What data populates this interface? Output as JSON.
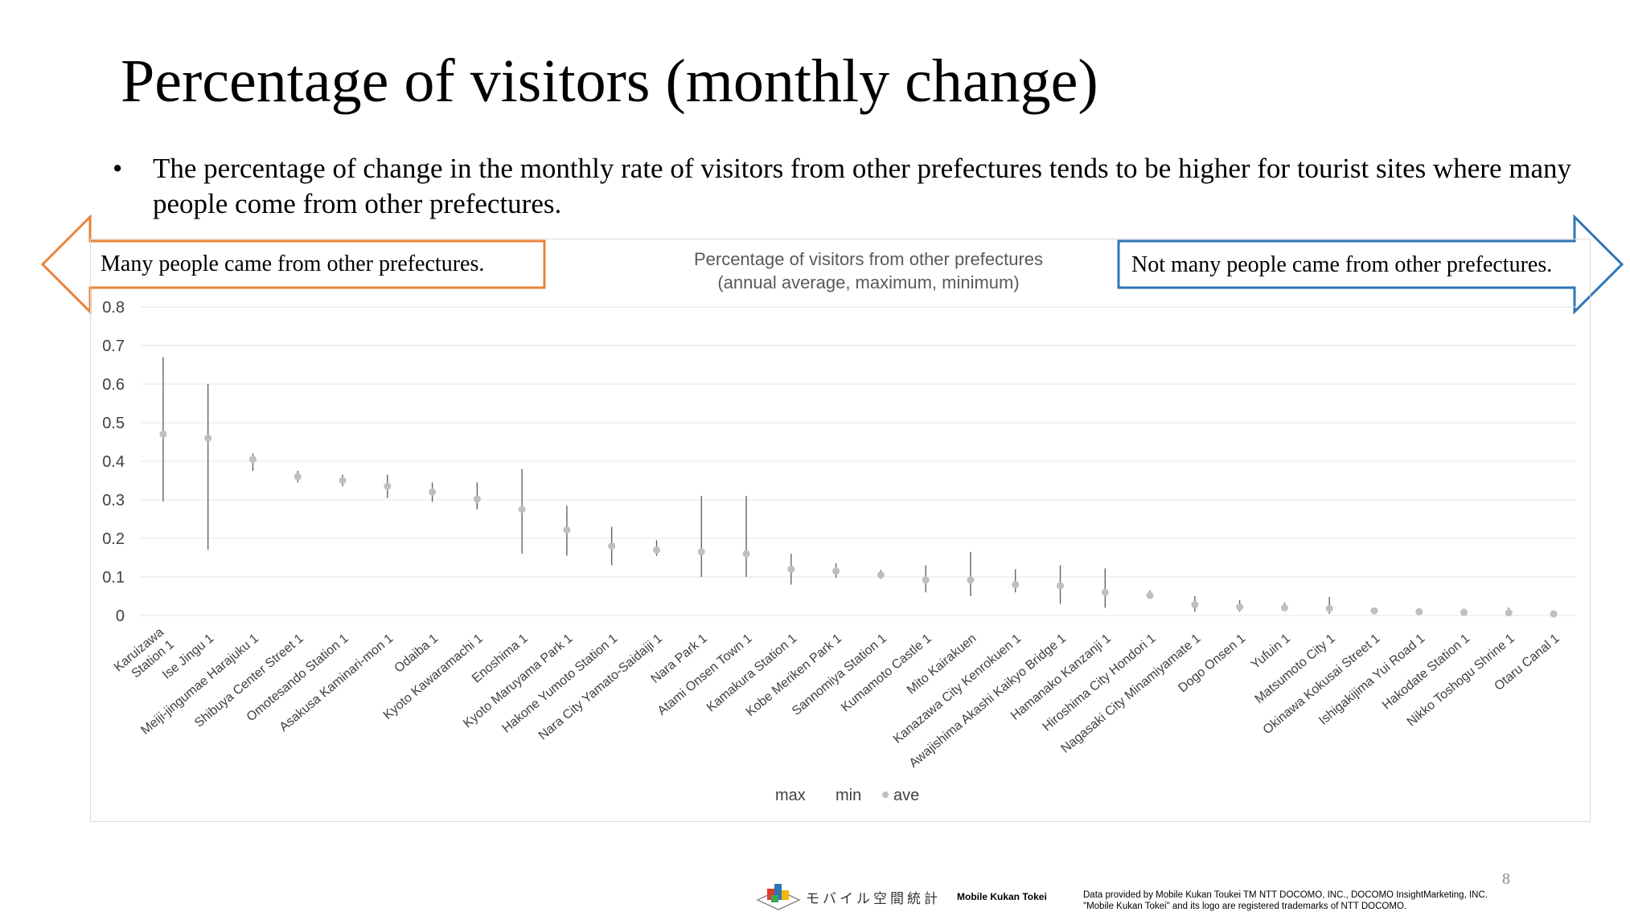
{
  "slide": {
    "title": "Percentage of visitors (monthly change)",
    "bullet_symbol": "•",
    "bullet": "The percentage of change in the monthly rate of visitors from other prefectures tends to be higher for tourist sites where many people come from other prefectures.",
    "left_arrow_label": "Many people came from other prefectures.",
    "right_arrow_label": "Not many people came from other prefectures.",
    "page_number": "8"
  },
  "footer": {
    "logo_jp": "モバイル空間統計",
    "brand": "Mobile Kukan Tokei",
    "note_line1": "Data provided by Mobile Kukan Toukei TM NTT DOCOMO, INC., DOCOMO InsightMarketing, INC.",
    "note_line2": "\"Mobile Kukan Tokei\" and its logo are registered trademarks of NTT DOCOMO."
  },
  "colors": {
    "left_arrow": "#e8833a",
    "right_arrow": "#2e75b6",
    "marker": "#bfbfbf",
    "range_line": "#595959",
    "grid": "#e6e6e6",
    "axis_text": "#404040"
  },
  "chart_data": {
    "type": "stock",
    "title": "Percentage of visitors from other prefectures",
    "subtitle": "(annual average, maximum, minimum)",
    "ylim": [
      0,
      0.8
    ],
    "yticks": [
      0,
      0.1,
      0.2,
      0.3,
      0.4,
      0.5,
      0.6,
      0.7,
      0.8
    ],
    "ytick_labels": [
      "0",
      "0.1",
      "0.2",
      "0.3",
      "0.4",
      "0.5",
      "0.6",
      "0.7",
      "0.8"
    ],
    "grid": true,
    "legend": [
      "max",
      "min",
      "ave"
    ],
    "legend_position": "bottom",
    "categories": [
      "Karuizawa Station 1",
      "Ise Jingu 1",
      "Meiji-jingumae Harajuku 1",
      "Shibuya Center Street 1",
      "Omotesando Station 1",
      "Asakusa Kaminari-mon 1",
      "Odaiba 1",
      "Kyoto Kawaramachi 1",
      "Enoshima 1",
      "Kyoto Maruyama Park 1",
      "Hakone Yumoto Station 1",
      "Nara City Yamato-Saidaiji 1",
      "Nara Park 1",
      "Atami Onsen Town 1",
      "Kamakura Station 1",
      "Kobe Meriken Park 1",
      "Sannomiya Station 1",
      "Kumamoto Castle 1",
      "Mito Kairakuen",
      "Kanazawa City Kenrokuen 1",
      "Awajishima Akashi Kaikyo Bridge 1",
      "Hamanako Kanzanji 1",
      "Hiroshima City Hondori 1",
      "Nagasaki City Minamiyamate 1",
      "Dogo Onsen 1",
      "Yufuin 1",
      "Matsumoto City 1",
      "Okinawa Kokusai Street 1",
      "Ishigakijima Yui Road 1",
      "Hakodate Station 1",
      "Nikko Toshogu Shrine 1",
      "Otaru Canal 1"
    ],
    "tick_labels": [
      [
        "Karuizawa",
        "Station 1"
      ],
      [
        "Ise Jingu 1"
      ],
      [
        "Meiji-jingumae Harajuku 1"
      ],
      [
        "Shibuya Center Street 1"
      ],
      [
        "Omotesando Station 1"
      ],
      [
        "Asakusa Kaminari-mon 1"
      ],
      [
        "Odaiba 1"
      ],
      [
        "Kyoto Kawaramachi 1"
      ],
      [
        "Enoshima 1"
      ],
      [
        "Kyoto Maruyama Park 1"
      ],
      [
        "Hakone Yumoto Station 1"
      ],
      [
        "Nara City Yamato-Saidaiji 1"
      ],
      [
        "Nara Park 1"
      ],
      [
        "Atami Onsen Town 1"
      ],
      [
        "Kamakura Station 1"
      ],
      [
        "Kobe Meriken Park 1"
      ],
      [
        "Sannomiya Station 1"
      ],
      [
        "Kumamoto Castle 1"
      ],
      [
        "Mito Kairakuen"
      ],
      [
        "Kanazawa City Kenrokuen 1"
      ],
      [
        "Awajishima Akashi Kaikyo Bridge 1"
      ],
      [
        "Hamanako Kanzanji 1"
      ],
      [
        "Hiroshima City Hondori 1"
      ],
      [
        "Nagasaki City Minamiyamate 1"
      ],
      [
        "Dogo Onsen 1"
      ],
      [
        "Yufuin 1"
      ],
      [
        "Matsumoto City 1"
      ],
      [
        "Okinawa Kokusai Street 1"
      ],
      [
        "Ishigakijima Yui Road 1"
      ],
      [
        "Hakodate Station 1"
      ],
      [
        "Nikko Toshogu Shrine 1"
      ],
      [
        "Otaru Canal 1"
      ]
    ],
    "series": [
      {
        "name": "max",
        "values": [
          0.67,
          0.6,
          0.42,
          0.375,
          0.365,
          0.365,
          0.345,
          0.345,
          0.38,
          0.285,
          0.23,
          0.195,
          0.31,
          0.31,
          0.16,
          0.135,
          0.118,
          0.13,
          0.165,
          0.12,
          0.13,
          0.122,
          0.065,
          0.05,
          0.04,
          0.033,
          0.048,
          0.02,
          0.018,
          0.018,
          0.02,
          0.012
        ]
      },
      {
        "name": "min",
        "values": [
          0.295,
          0.17,
          0.375,
          0.345,
          0.335,
          0.305,
          0.295,
          0.275,
          0.16,
          0.155,
          0.13,
          0.155,
          0.1,
          0.1,
          0.08,
          0.098,
          0.095,
          0.06,
          0.05,
          0.06,
          0.03,
          0.02,
          0.045,
          0.01,
          0.01,
          0.012,
          0.004,
          0.008,
          0.006,
          0.004,
          0.002,
          0.002
        ]
      },
      {
        "name": "ave",
        "values": [
          0.47,
          0.46,
          0.405,
          0.36,
          0.35,
          0.335,
          0.32,
          0.302,
          0.275,
          0.222,
          0.18,
          0.17,
          0.165,
          0.16,
          0.12,
          0.115,
          0.105,
          0.092,
          0.092,
          0.08,
          0.077,
          0.06,
          0.052,
          0.028,
          0.022,
          0.02,
          0.018,
          0.012,
          0.01,
          0.008,
          0.007,
          0.004
        ]
      }
    ]
  }
}
